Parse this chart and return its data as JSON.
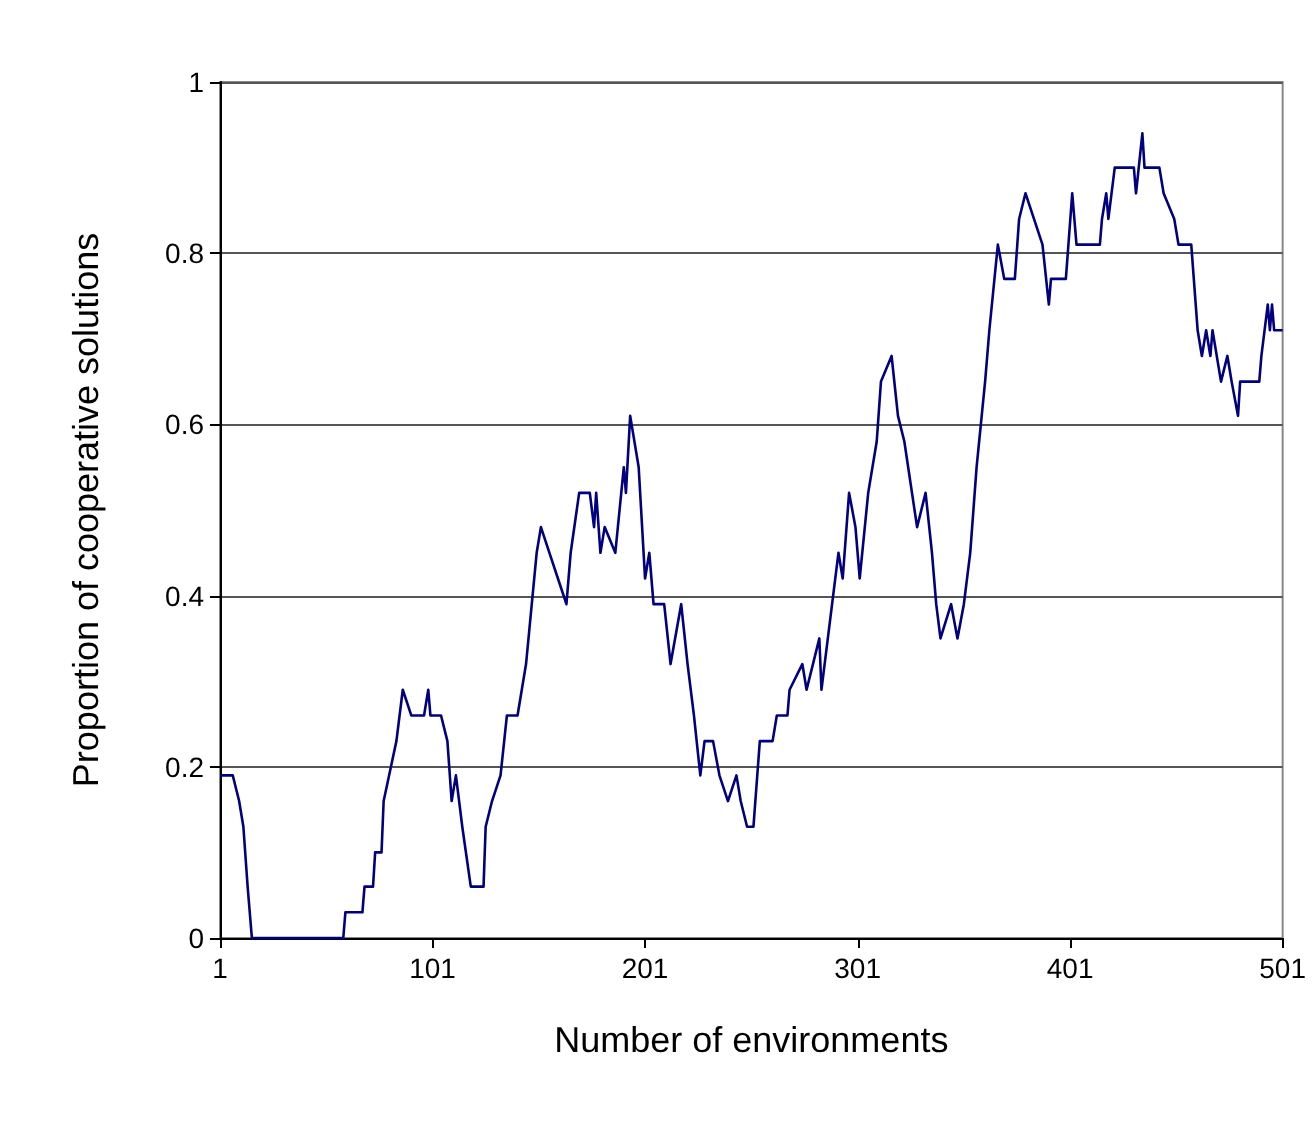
{
  "chart_data": {
    "type": "line",
    "xlabel": "Number of environments",
    "ylabel": "Proportion of cooperative solutions",
    "xlim": [
      1,
      501
    ],
    "xticks": [
      1,
      101,
      201,
      301,
      401,
      501
    ],
    "ylim": [
      0,
      1
    ],
    "yticks": [
      0,
      0.2,
      0.4,
      0.6,
      0.8,
      1
    ],
    "grid": "y",
    "marker": "none",
    "line_style": "solid",
    "series": [
      {
        "color": "#000080",
        "x": [
          1,
          7,
          10,
          12,
          14,
          16,
          59,
          60,
          68,
          69,
          73,
          74,
          77,
          78,
          84,
          87,
          91,
          97,
          99,
          100,
          105,
          108,
          110,
          112,
          115,
          119,
          125,
          126,
          129,
          133,
          136,
          141,
          145,
          150,
          152,
          156,
          160,
          164,
          166,
          170,
          175,
          177,
          178,
          180,
          182,
          187,
          191,
          192,
          194,
          198,
          201,
          203,
          205,
          210,
          213,
          218,
          221,
          224,
          227,
          229,
          233,
          236,
          240,
          244,
          246,
          249,
          252,
          255,
          261,
          263,
          268,
          269,
          275,
          277,
          280,
          283,
          284,
          287,
          289,
          292,
          294,
          297,
          300,
          302,
          306,
          310,
          312,
          317,
          320,
          323,
          329,
          333,
          336,
          338,
          340,
          345,
          348,
          351,
          354,
          357,
          361,
          363,
          367,
          370,
          375,
          377,
          380,
          384,
          388,
          391,
          392,
          399,
          402,
          404,
          415,
          416,
          418,
          419,
          422,
          431,
          432,
          435,
          436,
          443,
          445,
          450,
          452,
          458,
          461,
          463,
          465,
          467,
          468,
          472,
          475,
          477,
          480,
          481,
          490,
          491,
          494,
          495,
          496,
          497,
          501
        ],
        "values": [
          0.19,
          0.19,
          0.16,
          0.13,
          0.06,
          0,
          0,
          0.03,
          0.03,
          0.06,
          0.06,
          0.1,
          0.1,
          0.16,
          0.23,
          0.29,
          0.26,
          0.26,
          0.29,
          0.26,
          0.26,
          0.23,
          0.16,
          0.19,
          0.13,
          0.06,
          0.06,
          0.13,
          0.16,
          0.19,
          0.26,
          0.26,
          0.32,
          0.45,
          0.48,
          0.45,
          0.42,
          0.39,
          0.45,
          0.52,
          0.52,
          0.48,
          0.52,
          0.45,
          0.48,
          0.45,
          0.55,
          0.52,
          0.61,
          0.55,
          0.42,
          0.45,
          0.39,
          0.39,
          0.32,
          0.39,
          0.32,
          0.26,
          0.19,
          0.23,
          0.23,
          0.19,
          0.16,
          0.19,
          0.16,
          0.13,
          0.13,
          0.23,
          0.23,
          0.26,
          0.26,
          0.29,
          0.32,
          0.29,
          0.32,
          0.35,
          0.29,
          0.35,
          0.39,
          0.45,
          0.42,
          0.52,
          0.48,
          0.42,
          0.52,
          0.58,
          0.65,
          0.68,
          0.61,
          0.58,
          0.48,
          0.52,
          0.45,
          0.39,
          0.35,
          0.39,
          0.35,
          0.39,
          0.45,
          0.55,
          0.65,
          0.71,
          0.81,
          0.77,
          0.77,
          0.84,
          0.87,
          0.84,
          0.81,
          0.74,
          0.77,
          0.77,
          0.87,
          0.81,
          0.81,
          0.84,
          0.87,
          0.84,
          0.9,
          0.9,
          0.87,
          0.94,
          0.9,
          0.9,
          0.87,
          0.84,
          0.81,
          0.81,
          0.71,
          0.68,
          0.71,
          0.68,
          0.71,
          0.65,
          0.68,
          0.65,
          0.61,
          0.65,
          0.65,
          0.68,
          0.74,
          0.71,
          0.74,
          0.71,
          0.71
        ]
      }
    ]
  }
}
